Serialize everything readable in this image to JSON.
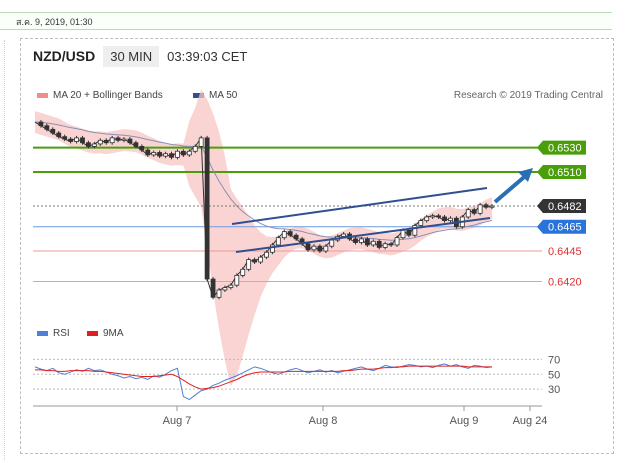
{
  "timestamp": "ส.ค. 9, 2019, 01:30",
  "header": {
    "symbol": "NZD/USD",
    "timeframe": "30 MIN",
    "clock": "03:39:03 CET"
  },
  "legend": {
    "ma20": "MA 20 + Bollinger Bands",
    "ma50": "MA 50",
    "rsi": "RSI",
    "ma9": "9MA"
  },
  "credit": "Research © 2019 Trading Central",
  "colors": {
    "green": "#4a9e0a",
    "blue": "#2a73d9",
    "navy": "#2f4f8f",
    "red": "#e05050",
    "band": "#f7c6c4"
  },
  "chart_data": {
    "type": "line",
    "title": "",
    "xlabel": "",
    "ylabel": "",
    "x_ticks": [
      "Aug 7",
      "Aug 8",
      "Aug 9",
      "Aug 24"
    ],
    "ylim": [
      0.639,
      0.6565
    ],
    "price": [
      0.6551,
      0.6548,
      0.6545,
      0.6542,
      0.6539,
      0.6537,
      0.6535,
      0.6538,
      0.6534,
      0.6531,
      0.6533,
      0.6536,
      0.6534,
      0.6538,
      0.6536,
      0.6537,
      0.6534,
      0.6531,
      0.6528,
      0.6524,
      0.6526,
      0.6523,
      0.6525,
      0.6522,
      0.6527,
      0.6524,
      0.6527,
      0.6531,
      0.6538,
      0.6422,
      0.6407,
      0.6413,
      0.6415,
      0.6417,
      0.6425,
      0.643,
      0.6438,
      0.6436,
      0.644,
      0.6444,
      0.645,
      0.6456,
      0.6461,
      0.6458,
      0.6455,
      0.6451,
      0.6446,
      0.6449,
      0.6445,
      0.6449,
      0.6454,
      0.6457,
      0.6459,
      0.6455,
      0.6452,
      0.6455,
      0.645,
      0.6453,
      0.6448,
      0.6451,
      0.645,
      0.6456,
      0.6462,
      0.6458,
      0.6466,
      0.647,
      0.6473,
      0.6474,
      0.6473,
      0.647,
      0.6472,
      0.6465,
      0.6473,
      0.6479,
      0.6476,
      0.6483,
      0.6481,
      0.6482
    ],
    "levels": [
      {
        "label": "0.6530",
        "value": 0.653,
        "kind": "resistance"
      },
      {
        "label": "0.6510",
        "value": 0.651,
        "kind": "resistance"
      },
      {
        "label": "0.6482",
        "value": 0.6482,
        "kind": "current"
      },
      {
        "label": "0.6465",
        "value": 0.6465,
        "kind": "support"
      },
      {
        "label": "0.6445",
        "value": 0.6445,
        "kind": "support"
      },
      {
        "label": "0.6420",
        "value": 0.642,
        "kind": "support"
      }
    ],
    "rsi": {
      "ticks": [
        "70",
        "50",
        "30"
      ],
      "ylim": [
        10,
        80
      ],
      "values": [
        60,
        57,
        55,
        58,
        52,
        50,
        53,
        56,
        54,
        58,
        55,
        56,
        53,
        50,
        48,
        45,
        47,
        44,
        46,
        43,
        48,
        46,
        50,
        55,
        58,
        20,
        16,
        22,
        28,
        30,
        35,
        38,
        42,
        45,
        48,
        52,
        56,
        60,
        58,
        55,
        52,
        50,
        53,
        56,
        58,
        55,
        52,
        54,
        56,
        53,
        55,
        52,
        54,
        56,
        58,
        60,
        57,
        55,
        58,
        62,
        60,
        59,
        61,
        63,
        62,
        60,
        61,
        59,
        62,
        64,
        61,
        63,
        60,
        58,
        62,
        61,
        59,
        60
      ],
      "ma9": [
        56,
        56,
        55,
        55,
        54,
        54,
        55,
        55,
        55,
        55,
        54,
        54,
        53,
        52,
        51,
        50,
        49,
        48,
        47,
        47,
        47,
        48,
        49,
        50,
        47,
        42,
        37,
        33,
        30,
        31,
        32,
        34,
        37,
        40,
        43,
        47,
        50,
        52,
        53,
        53,
        53,
        53,
        53,
        54,
        54,
        54,
        54,
        54,
        54,
        54,
        54,
        54,
        55,
        55,
        56,
        57,
        57,
        57,
        58,
        59,
        59,
        60,
        60,
        61,
        61,
        61,
        61,
        61,
        61,
        61,
        61,
        61,
        61,
        60,
        60,
        60,
        60,
        60
      ]
    }
  }
}
